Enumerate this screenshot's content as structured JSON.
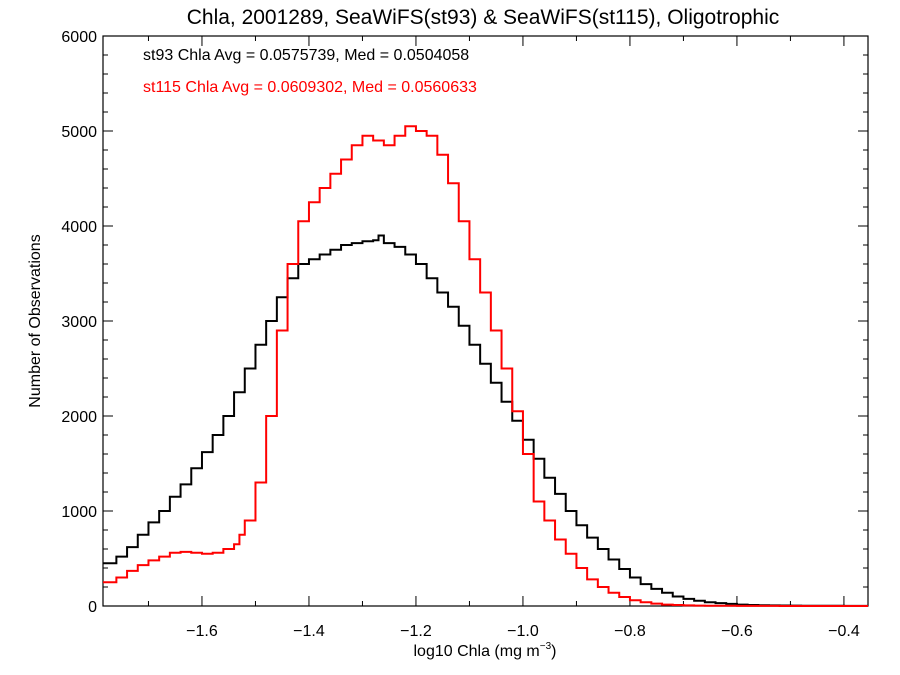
{
  "chart_data": {
    "type": "line",
    "title": "Chla, 2001289, SeaWiFS(st93) & SeaWiFS(st115), Oligotrophic",
    "xlabel": "log10 Chla (mg m",
    "xlabel_sup": "−3",
    "xlabel_close": ")",
    "ylabel": "Number of Observations",
    "xlim": [
      -1.785,
      -0.355
    ],
    "ylim": [
      0,
      6000
    ],
    "x_ticks": [
      -1.6,
      -1.4,
      -1.2,
      -1.0,
      -0.8,
      -0.6,
      -0.4
    ],
    "x_tick_labels": [
      "−1.6",
      "−1.4",
      "−1.2",
      "−1.0",
      "−0.8",
      "−0.6",
      "−0.4"
    ],
    "y_ticks": [
      0,
      1000,
      2000,
      3000,
      4000,
      5000,
      6000
    ],
    "y_tick_labels": [
      "0",
      "1000",
      "2000",
      "3000",
      "4000",
      "5000",
      "6000"
    ],
    "annotations": [
      {
        "text": "st93 Chla Avg = 0.0575739, Med = 0.0504058",
        "color": "#000000"
      },
      {
        "text": "st115 Chla Avg = 0.0609302, Med = 0.0560633",
        "color": "#ff0000"
      }
    ],
    "series": [
      {
        "color": "#000000",
        "x": [
          -1.785,
          -1.76,
          -1.74,
          -1.72,
          -1.7,
          -1.68,
          -1.66,
          -1.64,
          -1.62,
          -1.6,
          -1.58,
          -1.56,
          -1.54,
          -1.52,
          -1.5,
          -1.48,
          -1.46,
          -1.44,
          -1.42,
          -1.4,
          -1.38,
          -1.36,
          -1.34,
          -1.32,
          -1.3,
          -1.28,
          -1.27,
          -1.26,
          -1.24,
          -1.22,
          -1.2,
          -1.18,
          -1.16,
          -1.14,
          -1.12,
          -1.1,
          -1.08,
          -1.06,
          -1.04,
          -1.02,
          -1.0,
          -0.98,
          -0.96,
          -0.94,
          -0.92,
          -0.9,
          -0.88,
          -0.86,
          -0.84,
          -0.82,
          -0.8,
          -0.78,
          -0.76,
          -0.74,
          -0.72,
          -0.7,
          -0.68,
          -0.66,
          -0.64,
          -0.62,
          -0.6,
          -0.58,
          -0.56,
          -0.54,
          -0.52,
          -0.5,
          -0.48,
          -0.46,
          -0.44,
          -0.42,
          -0.4,
          -0.38,
          -0.355
        ],
        "y": [
          450,
          520,
          620,
          750,
          880,
          1000,
          1150,
          1280,
          1450,
          1620,
          1800,
          2000,
          2250,
          2500,
          2750,
          3000,
          3250,
          3450,
          3600,
          3650,
          3700,
          3750,
          3800,
          3820,
          3840,
          3850,
          3900,
          3820,
          3780,
          3700,
          3600,
          3450,
          3300,
          3150,
          2950,
          2750,
          2550,
          2350,
          2150,
          1950,
          1750,
          1550,
          1350,
          1180,
          1000,
          850,
          720,
          600,
          490,
          390,
          300,
          230,
          180,
          140,
          100,
          75,
          55,
          40,
          30,
          22,
          15,
          10,
          8,
          6,
          5,
          4,
          3,
          3,
          2,
          2,
          1,
          1,
          1
        ]
      },
      {
        "color": "#ff0000",
        "x": [
          -1.785,
          -1.76,
          -1.74,
          -1.72,
          -1.7,
          -1.68,
          -1.66,
          -1.64,
          -1.62,
          -1.6,
          -1.58,
          -1.56,
          -1.54,
          -1.53,
          -1.52,
          -1.5,
          -1.48,
          -1.46,
          -1.44,
          -1.42,
          -1.4,
          -1.38,
          -1.36,
          -1.34,
          -1.32,
          -1.3,
          -1.28,
          -1.26,
          -1.24,
          -1.22,
          -1.2,
          -1.18,
          -1.16,
          -1.14,
          -1.12,
          -1.1,
          -1.08,
          -1.06,
          -1.04,
          -1.02,
          -1.0,
          -0.98,
          -0.96,
          -0.94,
          -0.92,
          -0.9,
          -0.88,
          -0.86,
          -0.84,
          -0.82,
          -0.8,
          -0.78,
          -0.76,
          -0.74,
          -0.72,
          -0.7,
          -0.68,
          -0.66,
          -0.64,
          -0.62,
          -0.6,
          -0.58,
          -0.56,
          -0.54,
          -0.52,
          -0.5,
          -0.48,
          -0.46,
          -0.44,
          -0.42,
          -0.4,
          -0.38,
          -0.355
        ],
        "y": [
          250,
          300,
          370,
          430,
          480,
          520,
          560,
          570,
          560,
          550,
          560,
          600,
          650,
          750,
          900,
          1300,
          2000,
          2900,
          3600,
          4050,
          4250,
          4400,
          4550,
          4700,
          4850,
          4950,
          4900,
          4850,
          4950,
          5050,
          5000,
          4950,
          4750,
          4450,
          4050,
          3650,
          3300,
          2900,
          2500,
          2050,
          1600,
          1100,
          900,
          700,
          550,
          400,
          280,
          200,
          140,
          95,
          60,
          40,
          25,
          15,
          10,
          6,
          4,
          3,
          2,
          2,
          1,
          1,
          1,
          1,
          0,
          0,
          0,
          0,
          0,
          0,
          0,
          0,
          0
        ]
      }
    ]
  }
}
